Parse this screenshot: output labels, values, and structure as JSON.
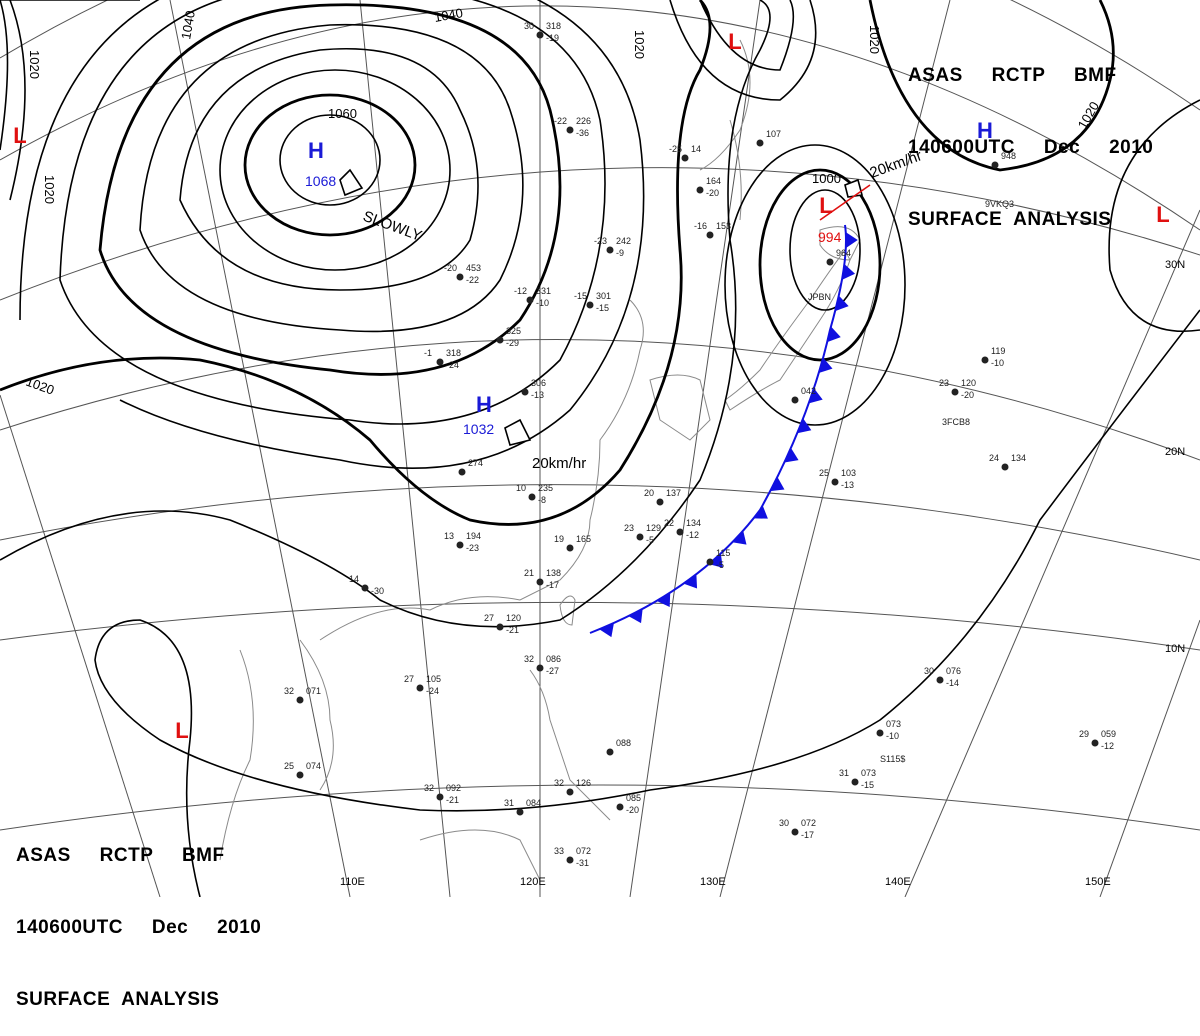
{
  "header": {
    "line1": "ASAS     RCTP     BMF",
    "line2": "140600UTC     Dec     2010",
    "line3": "SURFACE  ANALYSIS"
  },
  "colors": {
    "high": "#1a1ad6",
    "low": "#e01010",
    "front": "#1010e0",
    "isobar": "#000000",
    "grid": "#555555",
    "coast": "#888888"
  },
  "graticule": {
    "longitudes": [
      "110E",
      "120E",
      "130E",
      "140E",
      "150E"
    ],
    "latitudes": [
      "30N",
      "20N",
      "10N"
    ]
  },
  "pressure_centers": [
    {
      "type": "H",
      "value": "1068"
    },
    {
      "type": "H",
      "value": "1032"
    },
    {
      "type": "H",
      "value": ""
    },
    {
      "type": "L",
      "value": "994"
    },
    {
      "type": "L",
      "value": ""
    },
    {
      "type": "L",
      "value": ""
    },
    {
      "type": "L",
      "value": ""
    },
    {
      "type": "L",
      "value": ""
    }
  ],
  "isobar_labels": [
    "1040",
    "1040",
    "1020",
    "1020",
    "1020",
    "1020",
    "1020",
    "1060",
    "1000",
    "1020"
  ],
  "motion_labels": [
    "SLOWLY",
    "20km/hr",
    "20km/hr"
  ],
  "front": {
    "type": "cold"
  },
  "stations": [
    {
      "a": "30",
      "b": "318",
      "c": "-19"
    },
    {
      "a": "-25",
      "b": "14",
      "c": ""
    },
    {
      "a": "-22",
      "b": "226",
      "c": "-36"
    },
    {
      "a": "-23",
      "b": "242",
      "c": "-9"
    },
    {
      "a": "-20",
      "b": "453",
      "c": "-22"
    },
    {
      "a": "-12",
      "b": "331",
      "c": "-10"
    },
    {
      "a": "-15",
      "b": "301",
      "c": "-15"
    },
    {
      "a": "-1",
      "b": "318",
      "c": "-24"
    },
    {
      "a": "",
      "b": "325",
      "c": "-29"
    },
    {
      "a": "",
      "b": "306",
      "c": "-13"
    },
    {
      "a": "",
      "b": "274",
      "c": ""
    },
    {
      "a": "10",
      "b": "235",
      "c": "-8"
    },
    {
      "a": "13",
      "b": "194",
      "c": "-23"
    },
    {
      "a": "19",
      "b": "165",
      "c": ""
    },
    {
      "a": "21",
      "b": "138",
      "c": "-17"
    },
    {
      "a": "27",
      "b": "120",
      "c": "-21"
    },
    {
      "a": "14",
      "b": "",
      "c": "-30"
    },
    {
      "a": "23",
      "b": "129",
      "c": "-5"
    },
    {
      "a": "22",
      "b": "134",
      "c": "-12"
    },
    {
      "a": "",
      "b": "115",
      "c": "-5"
    },
    {
      "a": "20",
      "b": "137",
      "c": ""
    },
    {
      "a": "25",
      "b": "103",
      "c": "-13"
    },
    {
      "a": "24",
      "b": "134",
      "c": ""
    },
    {
      "a": "23",
      "b": "120",
      "c": "-20"
    },
    {
      "a": "",
      "b": "119",
      "c": "-10"
    },
    {
      "a": "",
      "b": "042",
      "c": ""
    },
    {
      "a": "32",
      "b": "071",
      "c": ""
    },
    {
      "a": "27",
      "b": "105",
      "c": "-24"
    },
    {
      "a": "25",
      "b": "074",
      "c": ""
    },
    {
      "a": "32",
      "b": "086",
      "c": "-27"
    },
    {
      "a": "32",
      "b": "092",
      "c": "-21"
    },
    {
      "a": "31",
      "b": "084",
      "c": ""
    },
    {
      "a": "32",
      "b": "126",
      "c": ""
    },
    {
      "a": "",
      "b": "088",
      "c": ""
    },
    {
      "a": "",
      "b": "085",
      "c": "-20"
    },
    {
      "a": "33",
      "b": "072",
      "c": "-31"
    },
    {
      "a": "30",
      "b": "076",
      "c": "-14"
    },
    {
      "a": "",
      "b": "073",
      "c": "-10"
    },
    {
      "a": "31",
      "b": "073",
      "c": "-15"
    },
    {
      "a": "30",
      "b": "072",
      "c": "-17"
    },
    {
      "a": "29",
      "b": "059",
      "c": "-12"
    },
    {
      "a": "",
      "b": "964",
      "c": ""
    },
    {
      "a": "",
      "b": "107",
      "c": ""
    },
    {
      "a": "",
      "b": "164",
      "c": "-20"
    },
    {
      "a": "-16",
      "b": "153",
      "c": ""
    },
    {
      "a": "",
      "b": "948",
      "c": ""
    }
  ],
  "ship_ids": [
    "9VKQ3",
    "3FCB8",
    "JPBN",
    "S115$"
  ]
}
